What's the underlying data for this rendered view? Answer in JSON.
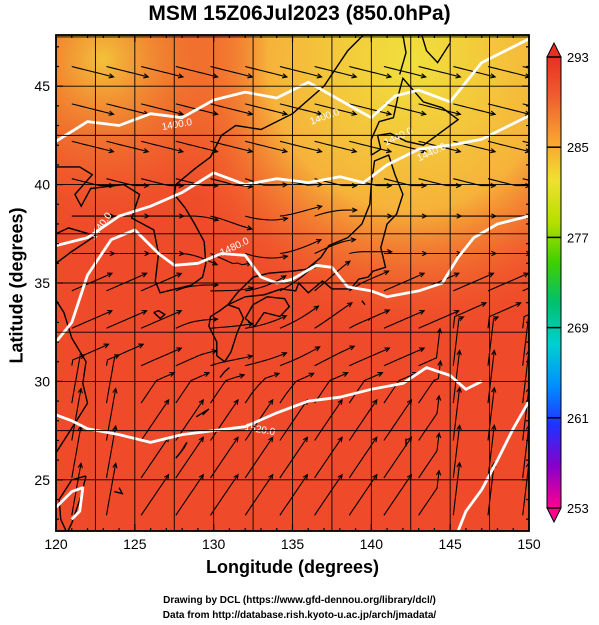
{
  "title": "MSM 15Z06Jul2023 (850.0hPa)",
  "xlabel": "Longitude (degrees)",
  "ylabel": "Latitude  (degrees)",
  "credits": {
    "line1": "Drawing by DCL (https://www.gfd-dennou.org/library/dcl/)",
    "line2": "Data from http://database.rish.kyoto-u.ac.jp/arch/jmadata/"
  },
  "map": {
    "lon_range": [
      120,
      150
    ],
    "lat_range": [
      22.4,
      47.6
    ],
    "lon_ticks": [
      "120",
      "125",
      "130",
      "135",
      "140",
      "145",
      "150"
    ],
    "lat_ticks": [
      "25",
      "30",
      "35",
      "40",
      "45"
    ],
    "contour_labels": [
      "1400.0",
      "1440.0",
      "1440.0",
      "1480.0",
      "1400.0",
      "1440.0",
      "1520.0"
    ],
    "colors": {
      "warm_field": "#f05a2a",
      "hot_field": "#ee3a2a",
      "cool_field": "#f0e13c",
      "streamline": "#000000",
      "contour": "#ffffff",
      "coastline": "#000000"
    }
  },
  "colorbar": {
    "tick_labels": [
      "293",
      "285",
      "277",
      "269",
      "261",
      "253"
    ],
    "range": [
      253,
      293
    ],
    "colors": [
      "#ff0090",
      "#8a00c8",
      "#2030ff",
      "#0090ff",
      "#00d0d0",
      "#00c070",
      "#40d000",
      "#b8e000",
      "#f0e030",
      "#f8a030",
      "#f06030",
      "#e83020"
    ]
  }
}
